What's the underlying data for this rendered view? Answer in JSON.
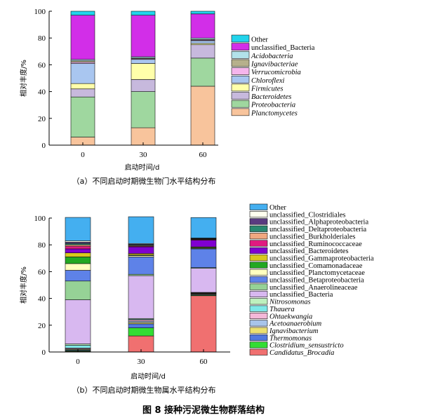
{
  "chart_data": [
    {
      "type": "bar",
      "stacked": true,
      "categories": [
        "0",
        "30",
        "60"
      ],
      "xlabel": "启动时间/d",
      "ylabel": "相对丰度/%",
      "ylim": [
        0,
        100
      ],
      "yticks": [
        0,
        20,
        40,
        60,
        80,
        100
      ],
      "caption": "（a）不同启动时期微生物门水平结构分布",
      "legend_position": "right",
      "series": [
        {
          "name": "Planctomycetes",
          "color": "#f8c49c",
          "values": [
            6,
            13,
            44
          ]
        },
        {
          "name": "Proteobacteria",
          "color": "#9fd79f",
          "values": [
            30,
            27,
            21
          ]
        },
        {
          "name": "Bacteroidetes",
          "color": "#c7b9dd",
          "values": [
            6,
            9,
            10
          ]
        },
        {
          "name": "Firmicutes",
          "color": "#ffffaa",
          "values": [
            4,
            12,
            1
          ]
        },
        {
          "name": "Chloroflexi",
          "color": "#a9c6f0",
          "values": [
            15,
            3,
            2
          ]
        },
        {
          "name": "Verrucomicrobia",
          "color": "#f6b5ec",
          "values": [
            1,
            0.5,
            0.5
          ]
        },
        {
          "name": "Ignavibacteriae",
          "color": "#b6b08c",
          "values": [
            1,
            0.5,
            0.5
          ]
        },
        {
          "name": "Acidobacteria",
          "color": "#b2e2ea",
          "values": [
            1,
            1,
            1
          ]
        },
        {
          "name": "unclassified_Bacteria",
          "color": "#d22ee8",
          "values": [
            33,
            31,
            18
          ]
        },
        {
          "name": "Other",
          "color": "#22d4ec",
          "values": [
            3,
            3,
            2
          ]
        }
      ]
    },
    {
      "type": "bar",
      "stacked": true,
      "categories": [
        "0",
        "30",
        "60"
      ],
      "xlabel": "启动时间/d",
      "ylabel": "相对丰度/%",
      "ylim": [
        0,
        100
      ],
      "yticks": [
        0,
        20,
        40,
        60,
        80,
        100
      ],
      "caption": "（b）不同启动时期微生物属水平结构分布",
      "legend_position": "right",
      "series": [
        {
          "name": "Candidatus_Brocadia",
          "color": "#f07070",
          "values": [
            0.5,
            12,
            42
          ]
        },
        {
          "name": "Clostridium_sensustricto",
          "color": "#33dd33",
          "values": [
            0.5,
            6,
            0.5
          ]
        },
        {
          "name": "Thermomonas",
          "color": "#5078e0",
          "values": [
            0.5,
            3,
            0.5
          ]
        },
        {
          "name": "Ignavibacterium",
          "color": "#ece070",
          "values": [
            0.5,
            1,
            0.5
          ]
        },
        {
          "name": "Acetoanaerobium",
          "color": "#a8c4ea",
          "values": [
            0.5,
            1,
            0.3
          ]
        },
        {
          "name": "Ohtaekwangia",
          "color": "#f4b8d8",
          "values": [
            0.5,
            1,
            0.2
          ]
        },
        {
          "name": "Thauera",
          "color": "#7ee8e8",
          "values": [
            2,
            0.5,
            0.2
          ]
        },
        {
          "name": "Nitrosomonas",
          "color": "#bef0be",
          "values": [
            1,
            0.5,
            0.3
          ]
        },
        {
          "name": "unclassified_Bacteria",
          "color": "#d8b8f0",
          "values": [
            33,
            32,
            18
          ]
        },
        {
          "name": "unclassified_Anaerolineaceae",
          "color": "#96d296",
          "values": [
            14,
            1,
            0.5
          ]
        },
        {
          "name": "unclassified_Betaproteobacteria",
          "color": "#5e82e8",
          "values": [
            8,
            13,
            14
          ]
        },
        {
          "name": "unclassified_Planctomycetaceae",
          "color": "#ffffc0",
          "values": [
            5,
            1,
            0.5
          ]
        },
        {
          "name": "unclassified_Comamonadaceae",
          "color": "#22a822",
          "values": [
            5,
            0.5,
            0.5
          ]
        },
        {
          "name": "unclassified_Gammaproteobacteria",
          "color": "#d8c81e",
          "values": [
            3,
            1,
            0.5
          ]
        },
        {
          "name": "unclassified_Bacteroidetes",
          "color": "#8000d0",
          "values": [
            3,
            5,
            5
          ]
        },
        {
          "name": "unclassified_Ruminococcaceae",
          "color": "#e01a80",
          "values": [
            2,
            0.5,
            0.5
          ]
        },
        {
          "name": "unclassified_Burkholderiales",
          "color": "#f0a880",
          "values": [
            1,
            0.5,
            0.3
          ]
        },
        {
          "name": "unclassified_Deltaproteobacteria",
          "color": "#2a8870",
          "values": [
            1,
            0.5,
            0.2
          ]
        },
        {
          "name": "unclassified_Alphaproteobacteria",
          "color": "#5a3a80",
          "values": [
            1,
            0.5,
            0.3
          ]
        },
        {
          "name": "unclassified_Clostridiales",
          "color": "#ffffee",
          "values": [
            1,
            0.5,
            0.3
          ]
        },
        {
          "name": "Other",
          "color": "#44aff0",
          "values": [
            17.5,
            20,
            15.3
          ]
        }
      ]
    }
  ],
  "figure_title": "图 8   接种污泥微生物群落结构"
}
